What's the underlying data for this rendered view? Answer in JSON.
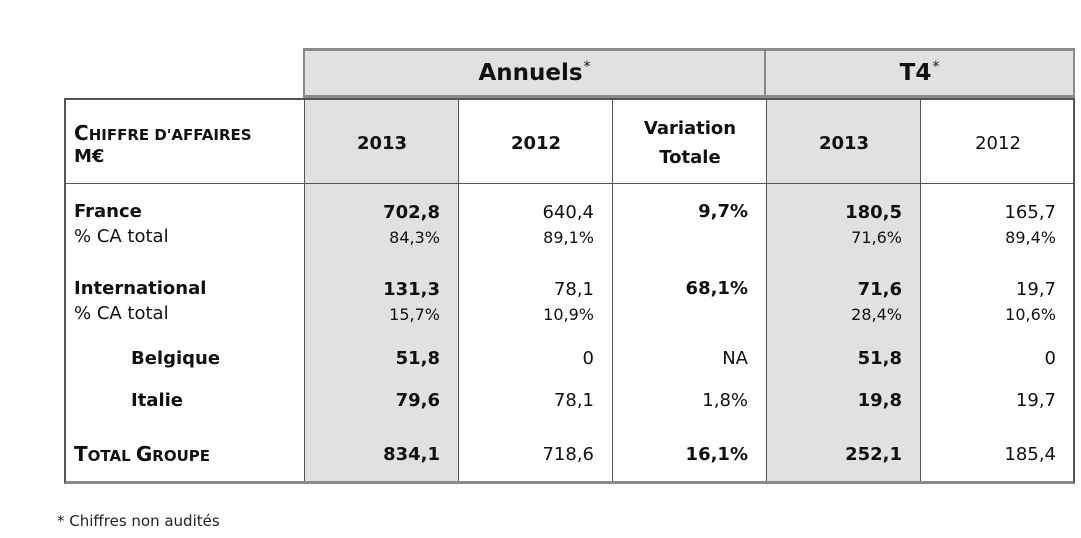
{
  "headers": {
    "annuels": "Annuels",
    "annuels_mark": "*",
    "t4": "T4",
    "t4_mark": "*"
  },
  "columns": {
    "label_line1_cap": "C",
    "label_line1_rest": "HIFFRE D'AFFAIRES",
    "label_line2": "M€",
    "y2013": "2013",
    "y2012": "2012",
    "variation_line1": "Variation",
    "variation_line2": "Totale",
    "t4_2013": "2013",
    "t4_2012": "2012"
  },
  "rows": {
    "france": {
      "label": "France",
      "sub": "% CA total",
      "v2013": "702,8",
      "p2013": "84,3%",
      "v2012": "640,4",
      "p2012": "89,1%",
      "variation": "9,7%",
      "t4_2013": "180,5",
      "t4_p2013": "71,6%",
      "t4_2012": "165,7",
      "t4_p2012": "89,4%"
    },
    "international": {
      "label": "International",
      "sub": "% CA total",
      "v2013": "131,3",
      "p2013": "15,7%",
      "v2012": "78,1",
      "p2012": "10,9%",
      "variation": "68,1%",
      "t4_2013": "71,6",
      "t4_p2013": "28,4%",
      "t4_2012": "19,7",
      "t4_p2012": "10,6%"
    },
    "belgique": {
      "label": "Belgique",
      "v2013": "51,8",
      "v2012": "0",
      "variation": "NA",
      "t4_2013": "51,8",
      "t4_2012": "0"
    },
    "italie": {
      "label": "Italie",
      "v2013": "79,6",
      "v2012": "78,1",
      "variation": "1,8%",
      "t4_2013": "19,8",
      "t4_2012": "19,7"
    },
    "total": {
      "label_cap1": "T",
      "label_rest1": "OTAL ",
      "label_cap2": "G",
      "label_rest2": "ROUPE",
      "v2013": "834,1",
      "v2012": "718,6",
      "variation": "16,1%",
      "t4_2013": "252,1",
      "t4_2012": "185,4"
    }
  },
  "footnote": "* Chiffres non audités"
}
